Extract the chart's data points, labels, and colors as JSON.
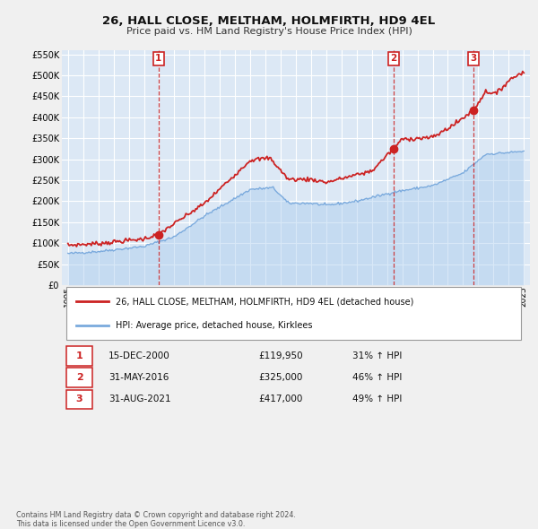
{
  "title": "26, HALL CLOSE, MELTHAM, HOLMFIRTH, HD9 4EL",
  "subtitle": "Price paid vs. HM Land Registry's House Price Index (HPI)",
  "fig_bg_color": "#f0f0f0",
  "plot_bg_color": "#dce8f5",
  "grid_color": "#ffffff",
  "ylim": [
    0,
    560000
  ],
  "yticks": [
    0,
    50000,
    100000,
    150000,
    200000,
    250000,
    300000,
    350000,
    400000,
    450000,
    500000,
    550000
  ],
  "ytick_labels": [
    "£0",
    "£50K",
    "£100K",
    "£150K",
    "£200K",
    "£250K",
    "£300K",
    "£350K",
    "£400K",
    "£450K",
    "£500K",
    "£550K"
  ],
  "hpi_color": "#7aaadd",
  "hpi_fill_color": "#aaccee",
  "price_color": "#cc2222",
  "sale_dot_color": "#cc2222",
  "vline_color": "#cc2222",
  "marker_box_color": "#cc2222",
  "sale_dates_decimal": [
    2000.958,
    2016.417,
    2021.667
  ],
  "sale_prices": [
    119950,
    325000,
    417000
  ],
  "sale_labels": [
    "1",
    "2",
    "3"
  ],
  "sale_table": [
    {
      "num": "1",
      "date": "15-DEC-2000",
      "price": "£119,950",
      "change": "31% ↑ HPI"
    },
    {
      "num": "2",
      "date": "31-MAY-2016",
      "price": "£325,000",
      "change": "46% ↑ HPI"
    },
    {
      "num": "3",
      "date": "31-AUG-2021",
      "price": "£417,000",
      "change": "49% ↑ HPI"
    }
  ],
  "legend_label_price": "26, HALL CLOSE, MELTHAM, HOLMFIRTH, HD9 4EL (detached house)",
  "legend_label_hpi": "HPI: Average price, detached house, Kirklees",
  "footnote": "Contains HM Land Registry data © Crown copyright and database right 2024.\nThis data is licensed under the Open Government Licence v3.0.",
  "xstart": 1994.6,
  "xend": 2025.4,
  "xtick_years": [
    1995,
    1996,
    1997,
    1998,
    1999,
    2000,
    2001,
    2002,
    2003,
    2004,
    2005,
    2006,
    2007,
    2008,
    2009,
    2010,
    2011,
    2012,
    2013,
    2014,
    2015,
    2016,
    2017,
    2018,
    2019,
    2020,
    2021,
    2022,
    2023,
    2024,
    2025
  ],
  "hpi_key_years": [
    1995,
    1997,
    2000,
    2002,
    2004,
    2007,
    2008.5,
    2009.5,
    2011,
    2012,
    2014,
    2016.5,
    2019,
    2020,
    2021,
    2022.5,
    2024,
    2025
  ],
  "hpi_key_values": [
    75000,
    80000,
    92000,
    115000,
    165000,
    228000,
    232000,
    195000,
    195000,
    190000,
    200000,
    222000,
    237000,
    252000,
    267000,
    312000,
    316000,
    319000
  ],
  "price_key_years": [
    1995,
    1997,
    2000,
    2001.0,
    2004,
    2007,
    2008.3,
    2009.5,
    2011,
    2012,
    2015,
    2016.4,
    2017,
    2019,
    2020.5,
    2021.67,
    2022.5,
    2023.2,
    2024,
    2025
  ],
  "price_key_values": [
    95000,
    99000,
    110000,
    122000,
    195000,
    298000,
    303000,
    252000,
    252000,
    245000,
    272000,
    325000,
    348000,
    352000,
    385000,
    417000,
    462000,
    456000,
    488000,
    510000
  ],
  "hpi_noise_seed": 42,
  "hpi_noise_scale": 1500,
  "price_noise_seed": 7,
  "price_noise_scale": 2500
}
